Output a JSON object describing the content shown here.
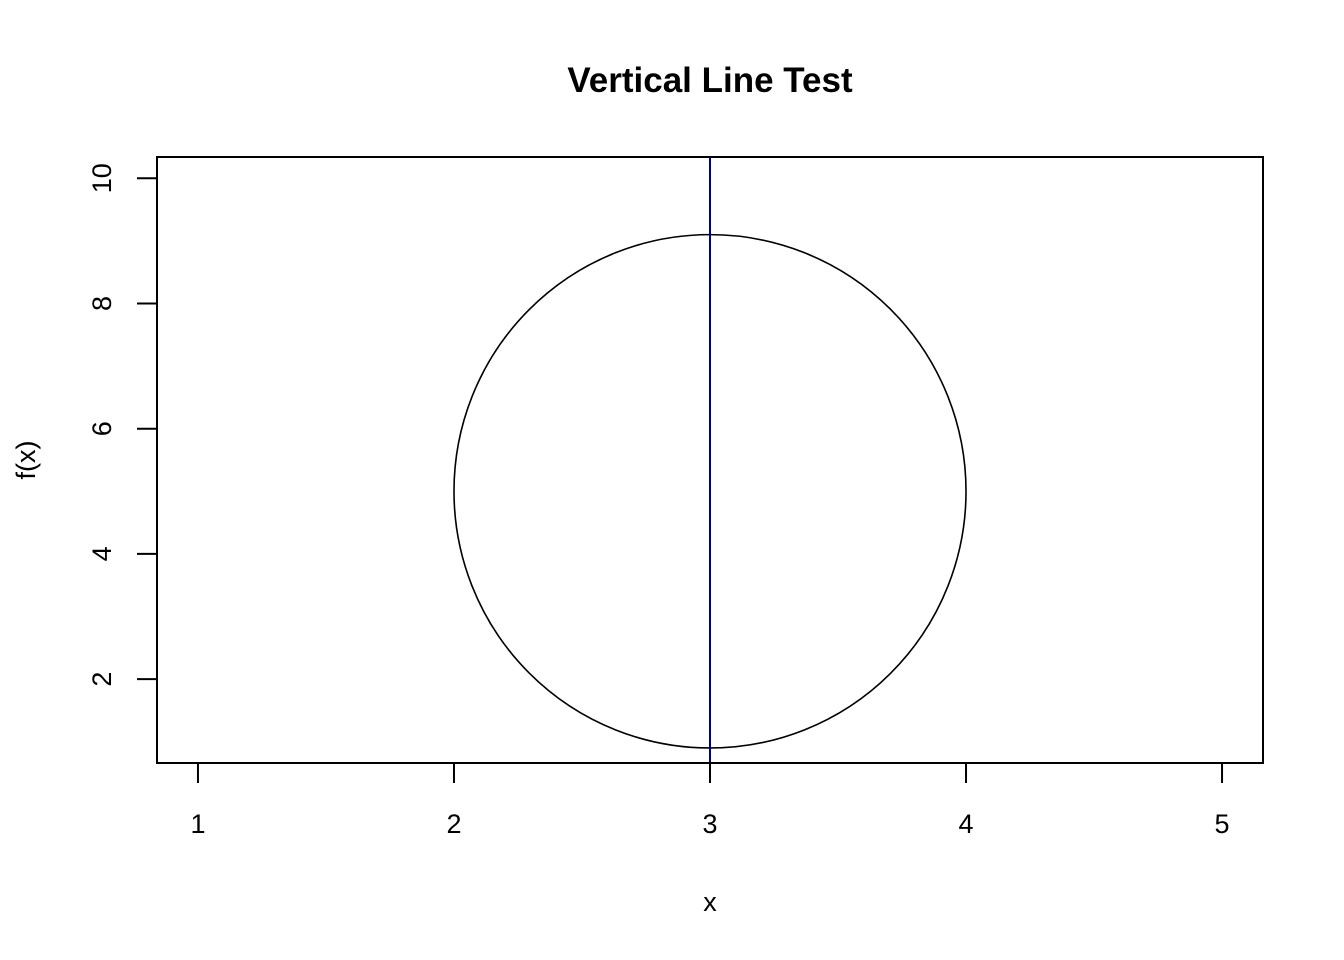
{
  "chart_data": {
    "type": "line",
    "title": "Vertical Line Test",
    "xlabel": "x",
    "ylabel": "f(x)",
    "xlim": [
      0.84,
      5.16
    ],
    "ylim": [
      0.66,
      10.34
    ],
    "x_ticks": [
      1,
      2,
      3,
      4,
      5
    ],
    "y_ticks": [
      2,
      4,
      6,
      8,
      10
    ],
    "x_tick_labels": [
      "1",
      "2",
      "3",
      "4",
      "5"
    ],
    "y_tick_labels": [
      "2",
      "4",
      "6",
      "8",
      "10"
    ],
    "grid": false,
    "series": [
      {
        "shape": "circle",
        "center": [
          3,
          5
        ],
        "x_radius": 1,
        "y_radius": 4.1,
        "color": "#000000"
      },
      {
        "shape": "vertical-line",
        "x": 3,
        "color": "#00008B"
      }
    ]
  }
}
